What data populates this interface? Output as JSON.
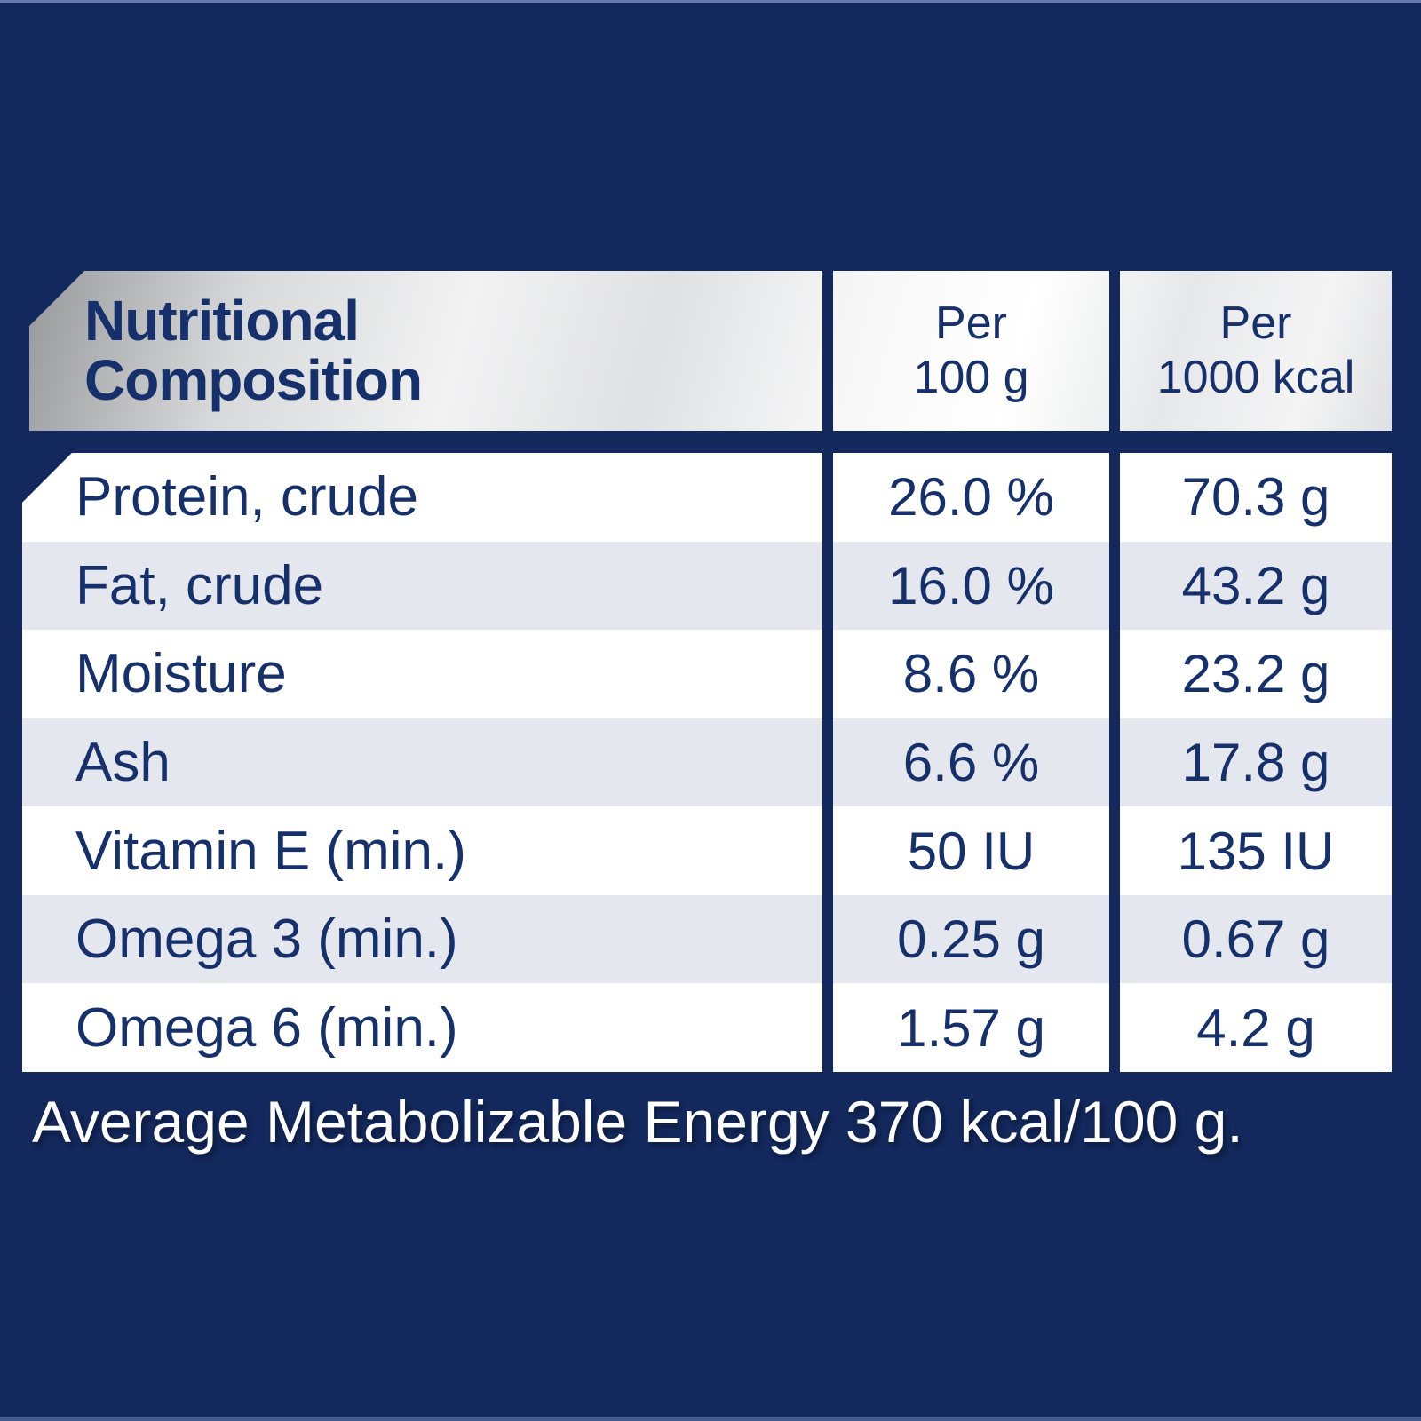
{
  "header": {
    "title_line1": "Nutritional",
    "title_line2": "Composition",
    "col_per_100g": {
      "line1": "Per",
      "line2": "100 g"
    },
    "col_per_1000kcal": {
      "line1": "Per",
      "line2": "1000 kcal"
    }
  },
  "table": {
    "columns": [
      "Nutritional Composition",
      "Per 100 g",
      "Per 1000 kcal"
    ],
    "rows": [
      {
        "label": "Protein, crude",
        "per_100g": "26.0 %",
        "per_1000kcal": "70.3 g"
      },
      {
        "label": "Fat, crude",
        "per_100g": "16.0 %",
        "per_1000kcal": "43.2 g"
      },
      {
        "label": "Moisture",
        "per_100g": "8.6 %",
        "per_1000kcal": "23.2 g"
      },
      {
        "label": "Ash",
        "per_100g": "6.6 %",
        "per_1000kcal": "17.8 g"
      },
      {
        "label": "Vitamin E (min.)",
        "per_100g": "50 IU",
        "per_1000kcal": "135 IU"
      },
      {
        "label": "Omega 3 (min.)",
        "per_100g": "0.25 g",
        "per_1000kcal": "0.67 g"
      },
      {
        "label": "Omega 6 (min.)",
        "per_100g": "1.57 g",
        "per_1000kcal": "4.2 g"
      }
    ]
  },
  "footer": {
    "text": "Average Metabolizable Energy 370 kcal/100 g."
  },
  "colors": {
    "background_navy": "#13285C",
    "text_navy": "#16306B",
    "row_stripe": "#E4E7EE",
    "row_white": "#FFFFFF",
    "header_metallic_dark": "#97989A",
    "header_metallic_light": "#FFFFFF",
    "footer_text": "#FFFFFF"
  }
}
